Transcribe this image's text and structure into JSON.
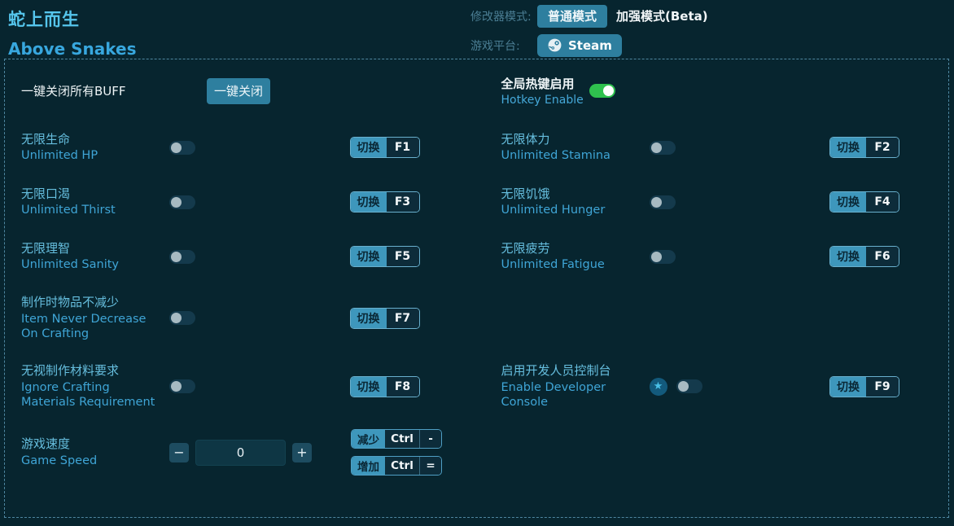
{
  "header": {
    "title_zh": "蛇上而生",
    "title_en": "Above Snakes",
    "modifier_mode_label": "修改器模式:",
    "mode_normal": "普通模式",
    "mode_enhanced": "加强模式(Beta)",
    "platform_label": "游戏平台:",
    "platform_steam": "Steam"
  },
  "panel": {
    "buff": {
      "label": "一键关闭所有BUFF",
      "button_label": "一键关闭"
    },
    "hotkey_enable": {
      "zh": "全局热键启用",
      "en": "Hotkey Enable",
      "on": true
    },
    "toggle_label": "切换",
    "cheats": [
      {
        "zh": "无限生命",
        "en": "Unlimited HP",
        "key": "F1",
        "on": false
      },
      {
        "zh": "无限体力",
        "en": "Unlimited Stamina",
        "key": "F2",
        "on": false
      },
      {
        "zh": "无限口渴",
        "en": "Unlimited Thirst",
        "key": "F3",
        "on": false
      },
      {
        "zh": "无限饥饿",
        "en": "Unlimited Hunger",
        "key": "F4",
        "on": false
      },
      {
        "zh": "无限理智",
        "en": "Unlimited Sanity",
        "key": "F5",
        "on": false
      },
      {
        "zh": "无限疲劳",
        "en": "Unlimited Fatigue",
        "key": "F6",
        "on": false
      },
      {
        "zh": "制作时物品不减少",
        "en": "Item Never Decrease On Crafting",
        "key": "F7",
        "on": false
      },
      null,
      {
        "zh": "无视制作材料要求",
        "en": "Ignore Crafting Materials Requirement",
        "key": "F8",
        "on": false
      },
      {
        "zh": "启用开发人员控制台",
        "en": "Enable Developer Console",
        "key": "F9",
        "on": false,
        "star": true
      }
    ],
    "speed": {
      "zh": "游戏速度",
      "en": "Game Speed",
      "value": "0",
      "minus": "−",
      "plus": "+",
      "decrease": {
        "label": "减少",
        "mod": "Ctrl",
        "key": "-"
      },
      "increase": {
        "label": "增加",
        "mod": "Ctrl",
        "key": "="
      }
    }
  },
  "icons": {
    "star": "★",
    "steam": "steam-logo"
  },
  "colors": {
    "background": "#07252f",
    "title_cyan": "#55c5ec",
    "subtitle_blue": "#38a7de",
    "muted_label": "#4b7e94",
    "accent_teal": "#2e7f9f",
    "segment_teal": "#3e97bc",
    "label_zh_blue": "#66bede",
    "label_en_blue": "#3fa5d6",
    "toggle_on_green": "#2fc14e",
    "dashed_border": "#4e86a0"
  }
}
